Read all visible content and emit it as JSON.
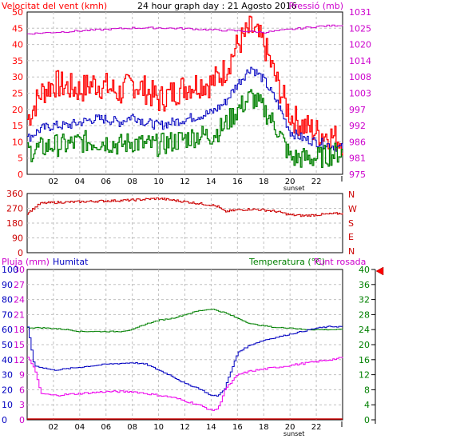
{
  "header": {
    "left_title": "Velocitat del vent (kmh)",
    "center_title": "24 hour graph day : 21 Agosto 2016",
    "right_title": "Pressió (mb)"
  },
  "x_ticks": [
    "02",
    "04",
    "06",
    "08",
    "10",
    "12",
    "14",
    "16",
    "18",
    "20",
    "22"
  ],
  "sunset_label": "sunset",
  "wind_panel": {
    "left_ticks": [
      "0",
      "5",
      "10",
      "15",
      "20",
      "25",
      "30",
      "35",
      "40",
      "45",
      "50"
    ],
    "right_ticks": [
      "975",
      "981",
      "986",
      "992",
      "997",
      "1003",
      "1008",
      "1014",
      "1020",
      "1025",
      "1031"
    ]
  },
  "dir_panel": {
    "left_ticks": [
      "0",
      "90",
      "180",
      "270",
      "360"
    ],
    "compass": [
      "N",
      "W",
      "S",
      "E",
      "N"
    ]
  },
  "bottom_panel": {
    "label_rain": "Pluja (mm)",
    "label_hum": "Humitat",
    "label_temp": "Temperatura (°C)",
    "label_dew": "Punt rosada",
    "rain_ticks": [
      "0",
      "3",
      "6",
      "9",
      "12",
      "15",
      "18",
      "21",
      "24",
      "27",
      "30"
    ],
    "hum_ticks": [
      "0",
      "10",
      "20",
      "30",
      "40",
      "50",
      "60",
      "70",
      "80",
      "90",
      "100"
    ],
    "temp_ticks": [
      "0",
      "4",
      "8",
      "12",
      "16",
      "20",
      "24",
      "28",
      "32",
      "36",
      "40"
    ]
  },
  "colors": {
    "gust": "#ff0000",
    "avg_wind": "#0000c0",
    "min_wind": "#008000",
    "pressure": "#cc00cc",
    "direction": "#cc0000",
    "temperature": "#008000",
    "humidity": "#0000c0",
    "dew_point": "#ee00ee",
    "rain": "#cc0000",
    "grid": "#c0c0c0",
    "pointer": "#ff0000"
  },
  "chart_data": [
    {
      "type": "line",
      "x_unit": "hour",
      "xlim": [
        0,
        24
      ],
      "y_left_lim": [
        0,
        50
      ],
      "y_right_lim": [
        975,
        1031
      ],
      "series": [
        {
          "name": "Velocitat del vent (kmh)",
          "axis": "left",
          "x": [
            0,
            1,
            2,
            3,
            4,
            5,
            6,
            7,
            8,
            9,
            10,
            11,
            12,
            13,
            14,
            15,
            16,
            17,
            18,
            19,
            20,
            21,
            22,
            23,
            24
          ],
          "y": [
            17,
            25,
            28,
            27,
            26,
            28,
            27,
            25,
            28,
            26,
            23,
            25,
            27,
            28,
            28,
            32,
            40,
            45,
            40,
            28,
            18,
            15,
            13,
            12,
            10
          ]
        },
        {
          "axis": "left",
          "x": [
            0,
            1,
            2,
            3,
            4,
            5,
            6,
            7,
            8,
            9,
            10,
            11,
            12,
            13,
            14,
            15,
            16,
            17,
            18,
            19,
            20,
            21,
            22,
            23,
            24
          ],
          "y": [
            11,
            14,
            15,
            15,
            16,
            17,
            17,
            16,
            18,
            16,
            15,
            16,
            17,
            18,
            19,
            22,
            28,
            33,
            29,
            22,
            13,
            11,
            10,
            9,
            8
          ]
        },
        {
          "axis": "left",
          "x": [
            0,
            1,
            2,
            3,
            4,
            5,
            6,
            7,
            8,
            9,
            10,
            11,
            12,
            13,
            14,
            15,
            16,
            17,
            18,
            19,
            20,
            21,
            22,
            23,
            24
          ],
          "y": [
            7,
            8,
            9,
            9,
            10,
            10,
            10,
            9,
            10,
            9,
            9,
            10,
            11,
            12,
            12,
            15,
            20,
            24,
            20,
            14,
            5,
            5,
            5,
            6,
            7
          ]
        },
        {
          "name": "Pressió (mb)",
          "axis": "right",
          "x": [
            0,
            2,
            4,
            6,
            8,
            10,
            12,
            14,
            16,
            18,
            20,
            22,
            24
          ],
          "y": [
            1023.5,
            1024,
            1024.5,
            1025,
            1025.5,
            1025.5,
            1025.3,
            1024.8,
            1024.5,
            1024,
            1025,
            1026,
            1026.5
          ]
        }
      ]
    },
    {
      "type": "line",
      "x_unit": "hour",
      "xlim": [
        0,
        24
      ],
      "ylim": [
        0,
        360
      ],
      "series": [
        {
          "axis": "left",
          "x": [
            0,
            0.5,
            1,
            2,
            4,
            6,
            8,
            10,
            11,
            12,
            13,
            14,
            14.5,
            15,
            16,
            17,
            18,
            19,
            20,
            21,
            22,
            23,
            24
          ],
          "y": [
            240,
            270,
            300,
            305,
            310,
            315,
            320,
            330,
            320,
            310,
            300,
            290,
            280,
            250,
            260,
            265,
            260,
            250,
            230,
            225,
            230,
            235,
            240
          ]
        }
      ]
    },
    {
      "type": "line",
      "x_unit": "hour",
      "xlim": [
        0,
        24
      ],
      "series": [
        {
          "name": "Temperatura (°C)",
          "axis": "temp",
          "ylim": [
            0,
            40
          ],
          "x": [
            0,
            1,
            2,
            3,
            4,
            5,
            6,
            7,
            8,
            9,
            10,
            11,
            12,
            13,
            14,
            15,
            16,
            17,
            18,
            19,
            20,
            21,
            22,
            23,
            24
          ],
          "y": [
            24.5,
            24.5,
            24.3,
            24,
            23.5,
            23.5,
            23.5,
            23.5,
            24,
            25.5,
            26.5,
            27,
            28,
            29,
            29.5,
            28.5,
            27,
            25.5,
            25,
            24.5,
            24.5,
            24,
            24,
            24,
            24
          ]
        },
        {
          "name": "Humitat",
          "axis": "hum",
          "ylim": [
            0,
            100
          ],
          "x": [
            0,
            0.5,
            1,
            2,
            4,
            6,
            8,
            9,
            10,
            11,
            12,
            13,
            14,
            14.5,
            15,
            16,
            17,
            18,
            19,
            20,
            21,
            22,
            23,
            24
          ],
          "y": [
            62,
            36,
            35,
            33,
            35,
            37,
            38,
            37,
            33,
            29,
            24,
            21,
            16,
            16,
            21,
            45,
            50,
            53,
            55,
            57,
            59,
            61,
            62,
            62
          ]
        },
        {
          "name": "Punt rosada",
          "axis": "temp",
          "ylim": [
            0,
            40
          ],
          "x": [
            0,
            0.5,
            1,
            2,
            4,
            6,
            8,
            9,
            10,
            11,
            12,
            13,
            14,
            14.5,
            15,
            16,
            17,
            18,
            19,
            20,
            21,
            22,
            23,
            24
          ],
          "y": [
            16.5,
            14,
            7,
            6.5,
            7,
            7.5,
            7.5,
            7,
            6.5,
            6,
            5,
            4,
            2.5,
            3,
            8,
            12,
            13,
            13.5,
            14,
            14.5,
            15,
            15.5,
            16,
            16.5
          ]
        },
        {
          "name": "Pluja (mm)",
          "axis": "rain",
          "ylim": [
            0,
            30
          ],
          "x": [
            0,
            24
          ],
          "y": [
            0,
            0
          ]
        }
      ]
    }
  ]
}
